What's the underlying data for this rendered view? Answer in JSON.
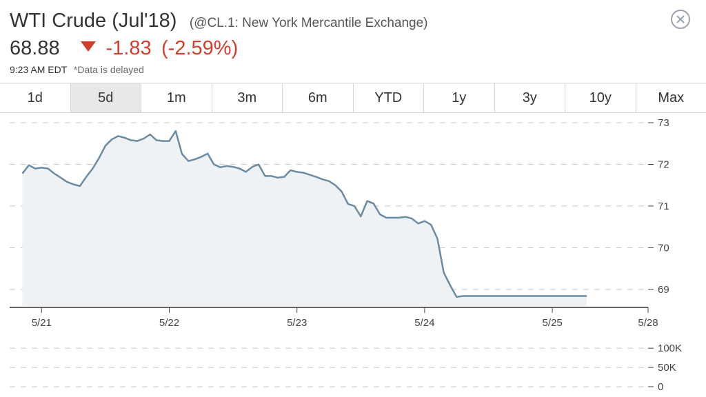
{
  "header": {
    "title": "WTI Crude (Jul'18)",
    "subtitle": "(@CL.1: New York Mercantile Exchange)",
    "price": "68.88",
    "change": "-1.83",
    "change_pct": "(-2.59%)",
    "time": "9:23 AM EDT",
    "delayed_note": "*Data is delayed",
    "close_icon": "close-circle-icon",
    "down_color": "#d0402f"
  },
  "tabs": [
    {
      "label": "1d",
      "active": false
    },
    {
      "label": "5d",
      "active": true
    },
    {
      "label": "1m",
      "active": false
    },
    {
      "label": "3m",
      "active": false
    },
    {
      "label": "6m",
      "active": false
    },
    {
      "label": "YTD",
      "active": false
    },
    {
      "label": "1y",
      "active": false
    },
    {
      "label": "3y",
      "active": false
    },
    {
      "label": "10y",
      "active": false
    },
    {
      "label": "Max",
      "active": false
    }
  ],
  "chart_data": {
    "type": "area",
    "title": "",
    "xlabel": "",
    "ylabel": "",
    "price_ylim": [
      68.6,
      73.1
    ],
    "price_yticks": [
      73,
      72,
      71,
      70,
      69
    ],
    "x_range": [
      0,
      5
    ],
    "x_ticks": [
      {
        "x": 0.25,
        "label": "5/21"
      },
      {
        "x": 1.25,
        "label": "5/22"
      },
      {
        "x": 2.25,
        "label": "5/23"
      },
      {
        "x": 3.25,
        "label": "5/24"
      },
      {
        "x": 4.25,
        "label": "5/25"
      },
      {
        "x": 5.0,
        "label": "5/28"
      }
    ],
    "line_color": "#6d8aa0",
    "fill_color": "#eef2f5",
    "grid": true,
    "price": {
      "x": [
        0.1,
        0.15,
        0.2,
        0.25,
        0.3,
        0.35,
        0.4,
        0.45,
        0.5,
        0.55,
        0.6,
        0.65,
        0.7,
        0.75,
        0.8,
        0.85,
        0.9,
        0.95,
        1.0,
        1.05,
        1.1,
        1.15,
        1.2,
        1.25,
        1.3,
        1.35,
        1.4,
        1.45,
        1.5,
        1.55,
        1.6,
        1.65,
        1.7,
        1.75,
        1.8,
        1.85,
        1.9,
        1.95,
        2.0,
        2.05,
        2.1,
        2.15,
        2.2,
        2.25,
        2.3,
        2.35,
        2.4,
        2.45,
        2.5,
        2.55,
        2.6,
        2.65,
        2.7,
        2.75,
        2.8,
        2.85,
        2.9,
        2.95,
        3.0,
        3.05,
        3.1,
        3.15,
        3.2,
        3.25,
        3.3,
        3.35,
        3.4,
        3.45,
        3.5,
        3.55,
        3.6,
        3.65,
        3.7,
        3.75,
        3.8,
        3.85,
        3.9,
        3.95,
        4.0,
        4.05,
        4.1,
        4.15,
        4.2,
        4.25,
        4.3,
        4.35,
        4.4,
        4.45,
        4.5,
        4.52
      ],
      "y": [
        71.78,
        71.98,
        71.9,
        71.92,
        71.9,
        71.78,
        71.68,
        71.58,
        71.52,
        71.48,
        71.7,
        71.9,
        72.15,
        72.45,
        72.6,
        72.68,
        72.64,
        72.58,
        72.56,
        72.62,
        72.72,
        72.58,
        72.56,
        72.56,
        72.8,
        72.25,
        72.08,
        72.12,
        72.18,
        72.26,
        72.0,
        71.93,
        71.96,
        71.94,
        71.9,
        71.82,
        71.94,
        72.0,
        71.72,
        71.72,
        71.68,
        71.7,
        71.86,
        71.82,
        71.8,
        71.75,
        71.7,
        71.64,
        71.6,
        71.5,
        71.35,
        71.05,
        71.0,
        70.75,
        71.12,
        71.06,
        70.8,
        70.72,
        70.72,
        70.72,
        70.74,
        70.7,
        70.58,
        70.64,
        70.55,
        70.22,
        69.4,
        69.1,
        68.82,
        68.84,
        68.84,
        68.84,
        68.84,
        68.84,
        68.84,
        68.84,
        68.84,
        68.84,
        68.84,
        68.84,
        68.84,
        68.84,
        68.84,
        68.84,
        68.84,
        68.84,
        68.84,
        68.84,
        68.84,
        68.84
      ]
    },
    "volume_yticks": [
      {
        "value": 100000,
        "label": "100K"
      },
      {
        "value": 50000,
        "label": "50K"
      },
      {
        "value": 0,
        "label": "0"
      }
    ],
    "volume_ylim": [
      0,
      120000
    ]
  }
}
